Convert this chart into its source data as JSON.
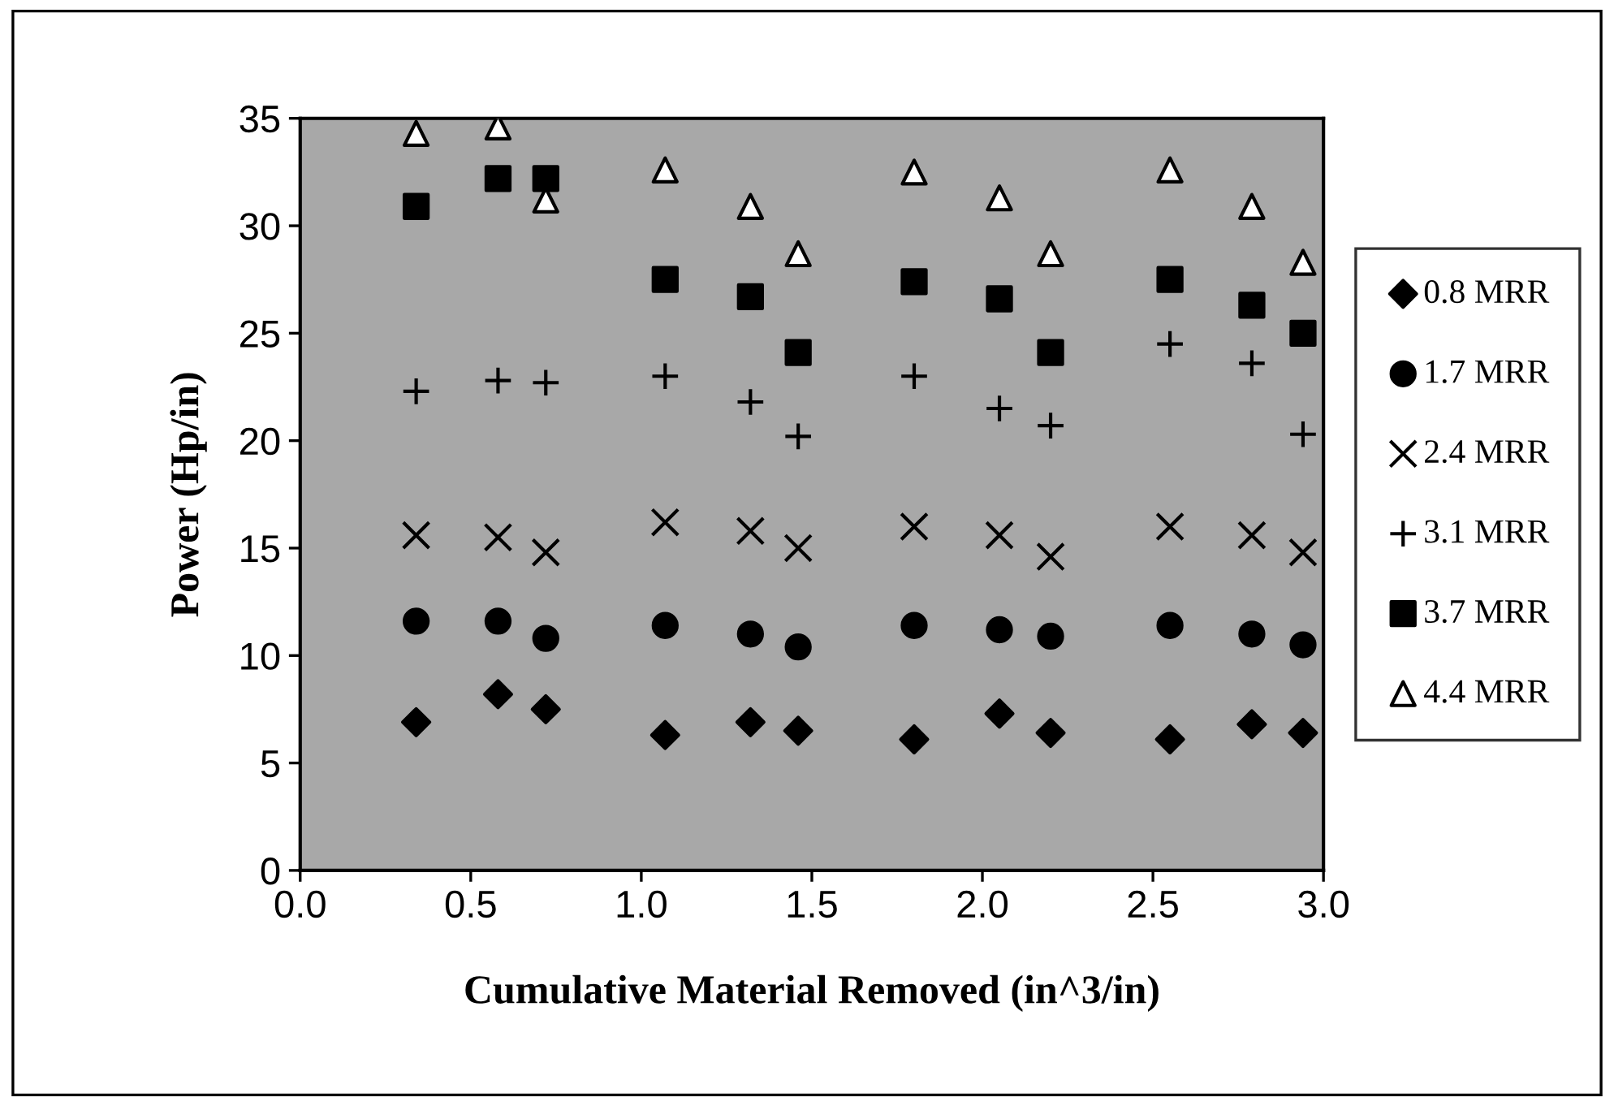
{
  "chart_data": {
    "type": "scatter",
    "xlabel": "Cumulative Material Removed (in^3/in)",
    "ylabel": "Power (Hp/in)",
    "x": [
      0.34,
      0.58,
      0.72,
      1.07,
      1.32,
      1.46,
      1.8,
      2.05,
      2.2,
      2.55,
      2.79,
      2.94
    ],
    "xlim": [
      0,
      3
    ],
    "xticks": [
      {
        "value": 0,
        "label": "0.0"
      },
      0.5,
      {
        "value": 1,
        "label": "1.0"
      },
      1.5,
      {
        "value": 2,
        "label": "2.0"
      },
      2.5,
      {
        "value": 3,
        "label": "3.0"
      }
    ],
    "ylim": [
      0,
      35
    ],
    "yticks": [
      0,
      5,
      10,
      15,
      20,
      25,
      30,
      35
    ],
    "grid": false,
    "legend": "right",
    "series": [
      {
        "name": "0.8 MRR",
        "color": "#000000",
        "marker": "diamond",
        "values": [
          6.9,
          8.2,
          7.5,
          6.3,
          6.9,
          6.5,
          6.1,
          7.3,
          6.4,
          6.1,
          6.8,
          6.4
        ]
      },
      {
        "name": "1.7 MRR",
        "color": "#000000",
        "marker": "circle",
        "values": [
          11.6,
          11.6,
          10.8,
          11.4,
          11.0,
          10.4,
          11.4,
          11.2,
          10.9,
          11.4,
          11.0,
          10.5
        ]
      },
      {
        "name": "2.4 MRR",
        "color": "#000000",
        "marker": "cross",
        "values": [
          15.6,
          15.5,
          14.8,
          16.2,
          15.8,
          15.0,
          16.0,
          15.6,
          14.6,
          16.0,
          15.6,
          14.8
        ]
      },
      {
        "name": "3.1 MRR",
        "color": "#000000",
        "marker": "plus",
        "values": [
          22.3,
          22.8,
          22.7,
          23.0,
          21.8,
          20.2,
          23.0,
          21.5,
          20.7,
          24.5,
          23.6,
          20.3
        ]
      },
      {
        "name": "3.7 MRR",
        "color": "#000000",
        "marker": "square",
        "values": [
          30.9,
          32.2,
          32.2,
          27.5,
          26.7,
          24.1,
          27.4,
          26.6,
          24.1,
          27.5,
          26.3,
          25.0
        ]
      },
      {
        "name": "4.4 MRR",
        "color": "#ffffff",
        "marker": "triangle",
        "values": [
          34.3,
          34.6,
          31.2,
          32.6,
          30.9,
          28.7,
          32.5,
          31.3,
          28.7,
          32.6,
          30.9,
          28.3
        ]
      }
    ]
  }
}
